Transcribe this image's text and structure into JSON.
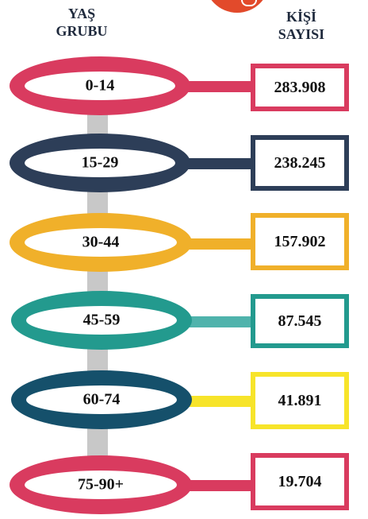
{
  "header": {
    "age_group_line1": "YAŞ",
    "age_group_line2": "GRUBU",
    "count_line1": "KİŞİ",
    "count_line2": "SAYISI"
  },
  "rows": [
    {
      "age": "0-14",
      "count": "283.908",
      "color": "#d93b5f"
    },
    {
      "age": "15-29",
      "count": "238.245",
      "color": "#2d3e58"
    },
    {
      "age": "30-44",
      "count": "157.902",
      "color": "#f0b02a"
    },
    {
      "age": "45-59",
      "count": "87.545",
      "color": "#239a8e"
    },
    {
      "age": "60-74",
      "count": "41.891",
      "color": "#15506b"
    },
    {
      "age": "75-90+",
      "count": "19.704",
      "color": "#d93b5f"
    }
  ],
  "colors": {
    "connector": "#c8c8c8",
    "badge": "#e24a2b",
    "row_4_stem": "#4fb3ac",
    "row_5_accent": "#f7e42a"
  }
}
